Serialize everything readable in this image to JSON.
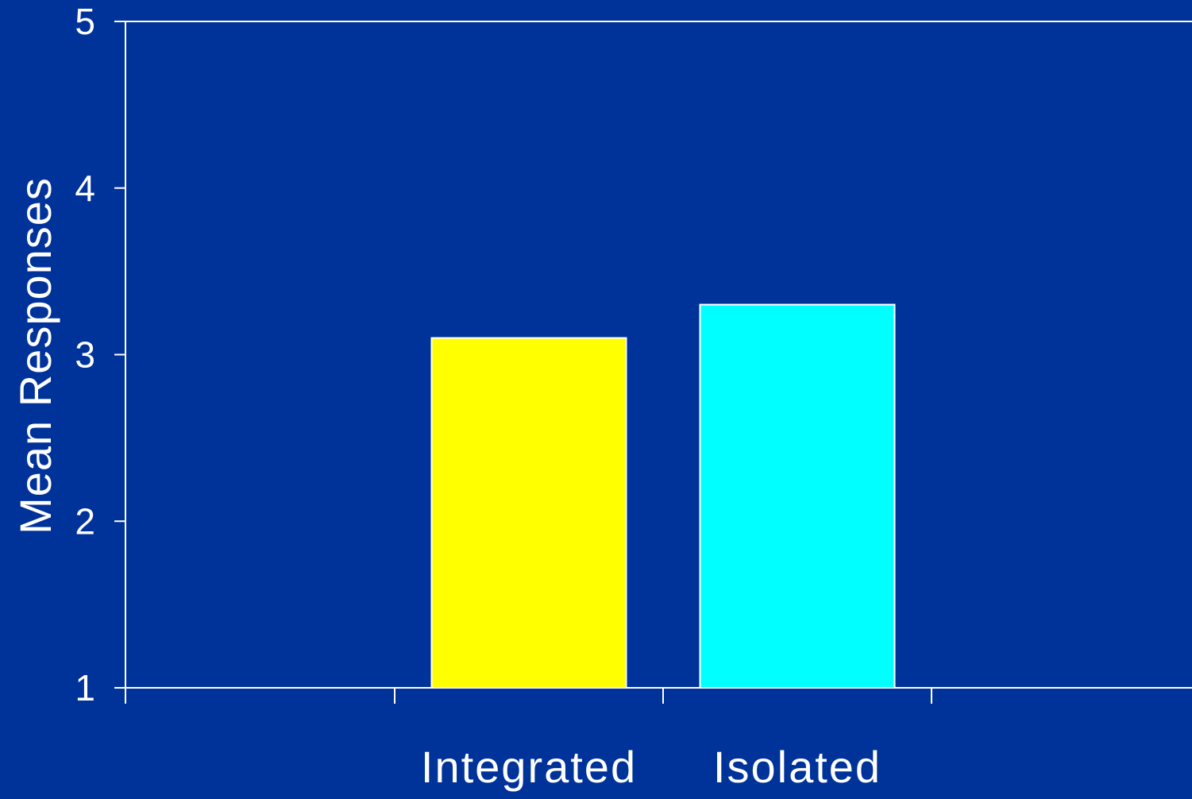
{
  "chart_data": {
    "type": "bar",
    "categories": [
      "Integrated",
      "Isolated"
    ],
    "values": [
      3.1,
      3.3
    ],
    "title": "",
    "xlabel": "",
    "ylabel": "Mean Responses",
    "ylim": [
      1,
      5
    ],
    "yticks": [
      "1",
      "2",
      "3",
      "4",
      "5"
    ],
    "grid": false,
    "legend": "none"
  },
  "colors": {
    "background": "#00339a",
    "axis": "#ffffff",
    "bars": [
      "#ffff00",
      "#00ffff"
    ],
    "bar_outline": "#ffffff"
  }
}
